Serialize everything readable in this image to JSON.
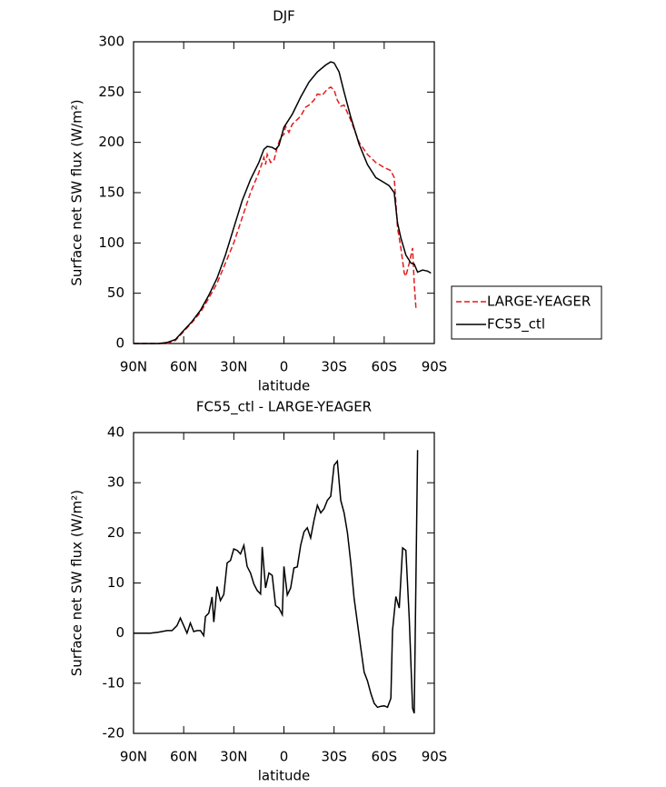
{
  "chart_data": [
    {
      "type": "line",
      "title": "DJF",
      "xlabel": "latitude",
      "ylabel": "Surface net SW flux (W/m²)",
      "xlim": [
        90,
        -90
      ],
      "ylim": [
        0,
        300
      ],
      "xticks": [
        {
          "value": 90,
          "label": "90N"
        },
        {
          "value": 60,
          "label": "60N"
        },
        {
          "value": 30,
          "label": "30N"
        },
        0,
        {
          "value": -30,
          "label": "30S"
        },
        {
          "value": -60,
          "label": "60S"
        },
        {
          "value": -90,
          "label": "90S"
        }
      ],
      "yticks": [
        0,
        50,
        100,
        150,
        200,
        250,
        300
      ],
      "legend": "right",
      "series": [
        {
          "name": "LARGE-YEAGER",
          "color": "#e41a1c",
          "style": "dashed",
          "x": [
            90,
            80,
            75,
            70,
            65,
            60,
            55,
            50,
            45,
            40,
            35,
            30,
            25,
            20,
            15,
            12,
            11,
            10,
            8,
            6,
            4,
            2,
            0,
            -1,
            -3,
            -5,
            -10,
            -13,
            -15,
            -18,
            -20,
            -23,
            -26,
            -28,
            -30,
            -32,
            -34,
            -36,
            -40,
            -45,
            -50,
            -55,
            -60,
            -64,
            -66,
            -67,
            -68,
            -70,
            -72,
            -73,
            -75,
            -77,
            -78,
            -79
          ],
          "values": [
            0,
            0,
            0,
            0,
            3,
            12,
            21,
            31,
            45,
            60,
            80,
            100,
            125,
            150,
            170,
            185,
            178,
            188,
            180,
            182,
            195,
            205,
            208,
            216,
            210,
            218,
            226,
            235,
            237,
            242,
            248,
            247,
            253,
            255,
            252,
            242,
            236,
            237,
            222,
            200,
            188,
            180,
            175,
            172,
            165,
            140,
            115,
            95,
            70,
            67,
            80,
            95,
            60,
            35
          ]
        },
        {
          "name": "FC55_ctl",
          "color": "#000000",
          "style": "solid",
          "x": [
            90,
            80,
            75,
            70,
            65,
            60,
            55,
            50,
            45,
            40,
            35,
            30,
            25,
            20,
            15,
            12,
            10,
            7,
            5,
            3,
            0,
            -5,
            -10,
            -15,
            -20,
            -25,
            -28,
            -30,
            -33,
            -36,
            -40,
            -45,
            -50,
            -55,
            -60,
            -63,
            -66,
            -68,
            -70,
            -73,
            -76,
            -78,
            -80,
            -83,
            -86,
            -88
          ],
          "values": [
            0,
            0,
            0,
            1,
            4,
            13,
            22,
            33,
            48,
            65,
            88,
            115,
            142,
            163,
            180,
            193,
            196,
            195,
            193,
            197,
            215,
            228,
            245,
            260,
            270,
            277,
            280,
            279,
            270,
            250,
            225,
            198,
            178,
            165,
            160,
            157,
            150,
            120,
            105,
            88,
            80,
            79,
            71,
            73,
            72,
            70
          ]
        }
      ]
    },
    {
      "type": "line",
      "title": "FC55_ctl - LARGE-YEAGER",
      "xlabel": "latitude",
      "ylabel": "Surface net SW flux (W/m²)",
      "xlim": [
        90,
        -90
      ],
      "ylim": [
        -20,
        40
      ],
      "xticks": [
        {
          "value": 90,
          "label": "90N"
        },
        {
          "value": 60,
          "label": "60N"
        },
        {
          "value": 30,
          "label": "30N"
        },
        0,
        {
          "value": -30,
          "label": "30S"
        },
        {
          "value": -60,
          "label": "60S"
        },
        {
          "value": -90,
          "label": "90S"
        }
      ],
      "yticks": [
        -20,
        -10,
        0,
        10,
        20,
        30,
        40
      ],
      "series": [
        {
          "color": "#000000",
          "style": "solid",
          "x": [
            90,
            80,
            75,
            70,
            67,
            64,
            62,
            60,
            58,
            56,
            54,
            52,
            50,
            48,
            47,
            45,
            43,
            42,
            40,
            38,
            36,
            34,
            32,
            30,
            28,
            26,
            24,
            22,
            20,
            18,
            16,
            14,
            13,
            11,
            9,
            7,
            5,
            3,
            1,
            0,
            -2,
            -4,
            -6,
            -8,
            -10,
            -12,
            -14,
            -16,
            -18,
            -20,
            -22,
            -24,
            -26,
            -28,
            -30,
            -32,
            -34,
            -36,
            -38,
            -40,
            -42,
            -44,
            -46,
            -48,
            -50,
            -52,
            -54,
            -56,
            -58,
            -60,
            -62,
            -64,
            -65,
            -66,
            -67,
            -69,
            -71,
            -73,
            -75,
            -77,
            -78,
            -80
          ],
          "values": [
            0,
            0,
            0.2,
            0.5,
            0.5,
            1.5,
            3,
            1.5,
            0,
            2,
            0.3,
            0.5,
            0.5,
            -0.5,
            3.3,
            4,
            7.2,
            2.2,
            9.3,
            6.5,
            7.7,
            14,
            14.5,
            16.8,
            16.5,
            15.8,
            17.5,
            13.3,
            12,
            9.8,
            8.5,
            7.8,
            17.2,
            9,
            12,
            11.5,
            5.5,
            5,
            3.7,
            13.3,
            7.6,
            9,
            13,
            13.2,
            17.5,
            20.2,
            21,
            19,
            22.5,
            25.5,
            24,
            24.8,
            26.5,
            27.3,
            33.5,
            34.3,
            26.5,
            24,
            20,
            14,
            7,
            2,
            -3,
            -7.8,
            -9.5,
            -12,
            -14,
            -14.8,
            -14.6,
            -14.5,
            -14.8,
            -13,
            0.5,
            4,
            7.3,
            5,
            17,
            16.5,
            3,
            -15,
            -16,
            36.5
          ]
        }
      ]
    }
  ]
}
